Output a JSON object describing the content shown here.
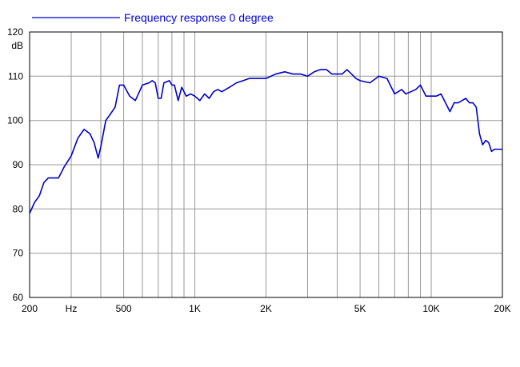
{
  "chart_data": {
    "type": "line",
    "title": "",
    "xscale": "log",
    "xlim": [
      200,
      20000
    ],
    "ylim": [
      60,
      120
    ],
    "grid": true,
    "legend_placement": "top-left",
    "ylabel": "dB",
    "x_ticks": [
      {
        "value": 200,
        "label": "200"
      },
      {
        "value": 300,
        "label": "Hz"
      },
      {
        "value": 500,
        "label": "500"
      },
      {
        "value": 1000,
        "label": "1K"
      },
      {
        "value": 2000,
        "label": "2K"
      },
      {
        "value": 5000,
        "label": "5K"
      },
      {
        "value": 10000,
        "label": "10K"
      },
      {
        "value": 20000,
        "label": "20K"
      }
    ],
    "x_gridlines": [
      200,
      300,
      400,
      500,
      600,
      700,
      800,
      900,
      1000,
      2000,
      3000,
      4000,
      5000,
      6000,
      7000,
      8000,
      9000,
      10000,
      20000
    ],
    "y_ticks": [
      {
        "value": 60,
        "label": "60"
      },
      {
        "value": 70,
        "label": "70"
      },
      {
        "value": 80,
        "label": "80"
      },
      {
        "value": 90,
        "label": "90"
      },
      {
        "value": 100,
        "label": "100"
      },
      {
        "value": 110,
        "label": "110"
      },
      {
        "value": 120,
        "label": "120"
      }
    ],
    "series": [
      {
        "name": "Frequency response 0 degree",
        "color": "#0000cc",
        "x": [
          200,
          210,
          220,
          230,
          240,
          250,
          265,
          280,
          300,
          320,
          340,
          360,
          375,
          390,
          400,
          420,
          440,
          460,
          480,
          500,
          530,
          560,
          600,
          640,
          660,
          680,
          700,
          720,
          740,
          780,
          800,
          820,
          850,
          880,
          920,
          960,
          1000,
          1050,
          1100,
          1150,
          1200,
          1250,
          1300,
          1350,
          1400,
          1500,
          1600,
          1700,
          1800,
          2000,
          2200,
          2400,
          2600,
          2800,
          3000,
          3200,
          3400,
          3600,
          3800,
          4000,
          4200,
          4400,
          4600,
          4800,
          5000,
          5500,
          6000,
          6500,
          7000,
          7500,
          7800,
          8200,
          8600,
          9000,
          9500,
          10000,
          10500,
          11000,
          12000,
          12500,
          13000,
          13500,
          14000,
          14500,
          15000,
          15500,
          16000,
          16500,
          17000,
          17500,
          18000,
          18500,
          19000,
          19500,
          20000
        ],
        "y": [
          79,
          81.5,
          83,
          86,
          87,
          87,
          87,
          89.5,
          92,
          96,
          98,
          97,
          95,
          91.5,
          94,
          100,
          101.5,
          103,
          108,
          108,
          105.5,
          104.5,
          108,
          108.5,
          109,
          108.5,
          105,
          105,
          108.5,
          109,
          108,
          108,
          104.5,
          107.5,
          105.5,
          106,
          105.5,
          104.5,
          106,
          105,
          106.5,
          107,
          106.5,
          107,
          107.5,
          108.5,
          109,
          109.5,
          109.5,
          109.5,
          110.5,
          111,
          110.5,
          110.5,
          110,
          111,
          111.5,
          111.5,
          110.5,
          110.5,
          110.5,
          111.5,
          110.5,
          109.5,
          109,
          108.5,
          110,
          109.5,
          106,
          107,
          106,
          106.5,
          107,
          108,
          105.5,
          105.5,
          105.5,
          106,
          102,
          104,
          104,
          104.5,
          105,
          104,
          104,
          103,
          97,
          94.5,
          95.5,
          95,
          93,
          93.5,
          93.5,
          93.5,
          93.5
        ]
      }
    ]
  }
}
